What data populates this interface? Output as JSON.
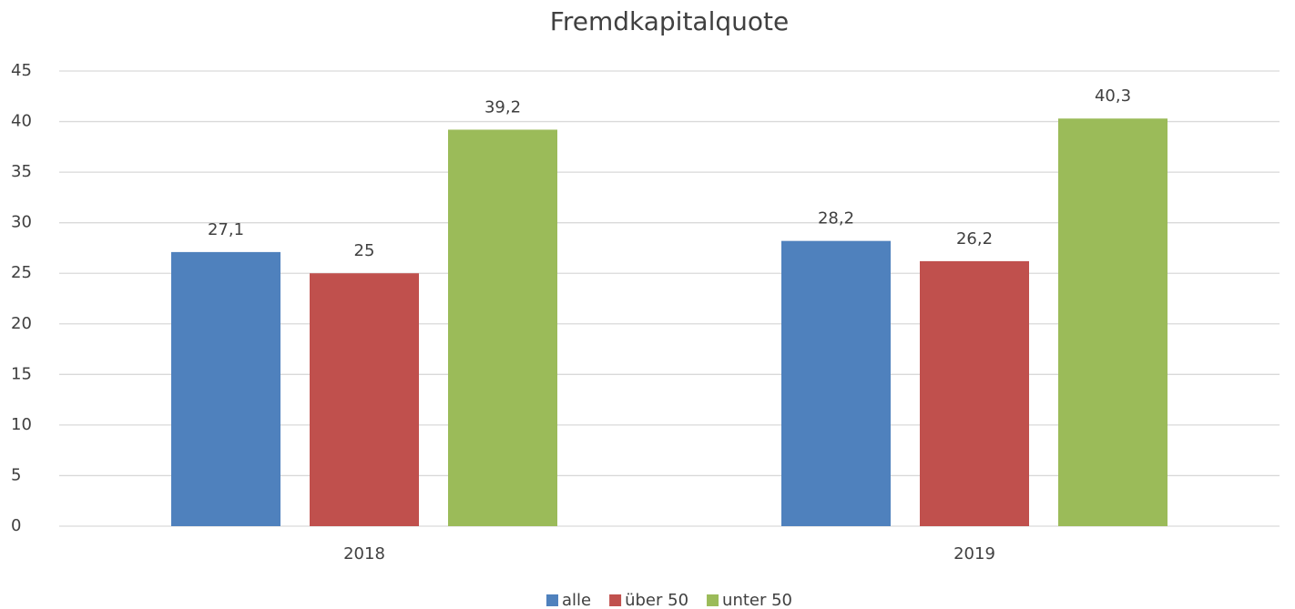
{
  "chart_data": {
    "type": "bar",
    "title": "Fremdkapitalquote",
    "categories": [
      "2018",
      "2019"
    ],
    "series": [
      {
        "name": "alle",
        "color": "#4f81bd",
        "values": [
          27.1,
          28.2
        ],
        "value_labels": [
          "27,1",
          "28,2"
        ]
      },
      {
        "name": "über 50",
        "color": "#c0504d",
        "values": [
          25,
          26.2
        ],
        "value_labels": [
          "25",
          "26,2"
        ]
      },
      {
        "name": "unter 50",
        "color": "#9bbb59",
        "values": [
          39.2,
          40.3
        ],
        "value_labels": [
          "39,2",
          "40,3"
        ]
      }
    ],
    "ylim": [
      0,
      45
    ],
    "yticks": [
      0,
      5,
      10,
      15,
      20,
      25,
      30,
      35,
      40,
      45
    ],
    "grid": true,
    "legend": "bottom"
  }
}
